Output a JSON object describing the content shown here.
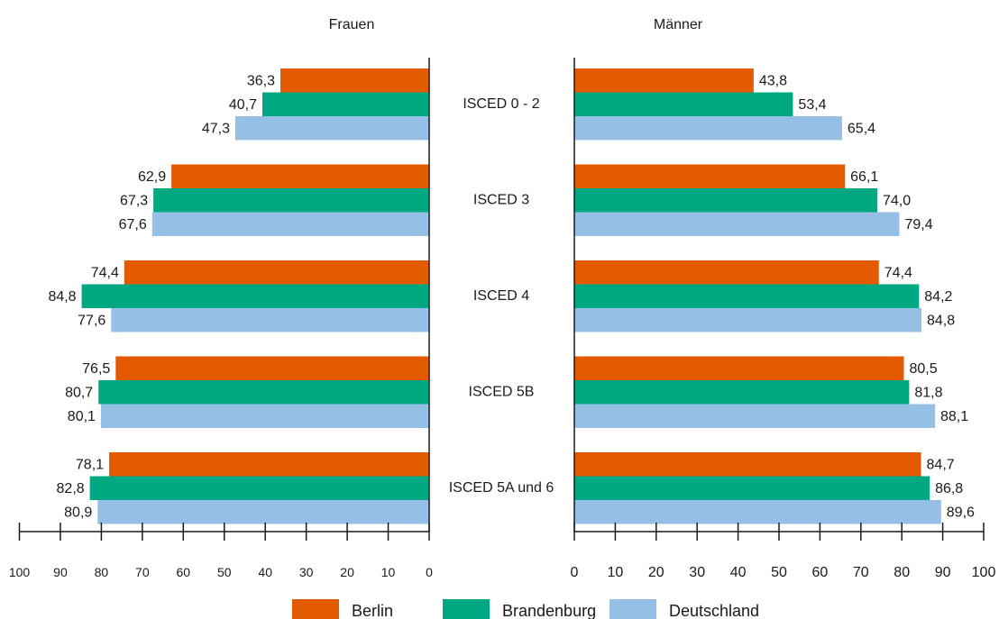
{
  "chart_data": {
    "type": "bar",
    "orientation": "horizontal",
    "layout": "butterfly",
    "categories": [
      "ISCED 0 - 2",
      "ISCED 3",
      "ISCED 4",
      "ISCED 5B",
      "ISCED 5A und 6"
    ],
    "panels": [
      {
        "title": "Frauen",
        "direction": "left",
        "xlim": [
          0,
          100
        ],
        "ticks": [
          100,
          90,
          80,
          70,
          60,
          50,
          40,
          30,
          20,
          10,
          0
        ],
        "series": [
          {
            "name": "Berlin",
            "values": [
              36.3,
              62.9,
              74.4,
              76.5,
              78.1
            ],
            "labels": [
              "36,3",
              "62,9",
              "74,4",
              "76,5",
              "78,1"
            ]
          },
          {
            "name": "Brandenburg",
            "values": [
              40.7,
              67.3,
              84.8,
              80.7,
              82.8
            ],
            "labels": [
              "40,7",
              "67,3",
              "84,8",
              "80,7",
              "82,8"
            ]
          },
          {
            "name": "Deutschland",
            "values": [
              47.3,
              67.6,
              77.6,
              80.1,
              80.9
            ],
            "labels": [
              "47,3",
              "67,6",
              "77,6",
              "80,1",
              "80,9"
            ]
          }
        ]
      },
      {
        "title": "Männer",
        "direction": "right",
        "xlim": [
          0,
          100
        ],
        "ticks": [
          0,
          10,
          20,
          30,
          40,
          50,
          60,
          70,
          80,
          90,
          100
        ],
        "series": [
          {
            "name": "Berlin",
            "values": [
              43.8,
              66.1,
              74.4,
              80.5,
              84.7
            ],
            "labels": [
              "43,8",
              "66,1",
              "74,4",
              "80,5",
              "84,7"
            ]
          },
          {
            "name": "Brandenburg",
            "values": [
              53.4,
              74.0,
              84.2,
              81.8,
              86.8
            ],
            "labels": [
              "53,4",
              "74,0",
              "84,2",
              "81,8",
              "86,8"
            ]
          },
          {
            "name": "Deutschland",
            "values": [
              65.4,
              79.4,
              84.8,
              88.1,
              89.6
            ],
            "labels": [
              "65,4",
              "79,4",
              "84,8",
              "88,1",
              "89,6"
            ]
          }
        ]
      }
    ],
    "legend": {
      "position": "bottom",
      "items": [
        {
          "name": "Berlin",
          "color": "#e35a00"
        },
        {
          "name": "Brandenburg",
          "color": "#00a882"
        },
        {
          "name": "Deutschland",
          "color": "#96bfe6"
        }
      ]
    },
    "grid": false
  }
}
